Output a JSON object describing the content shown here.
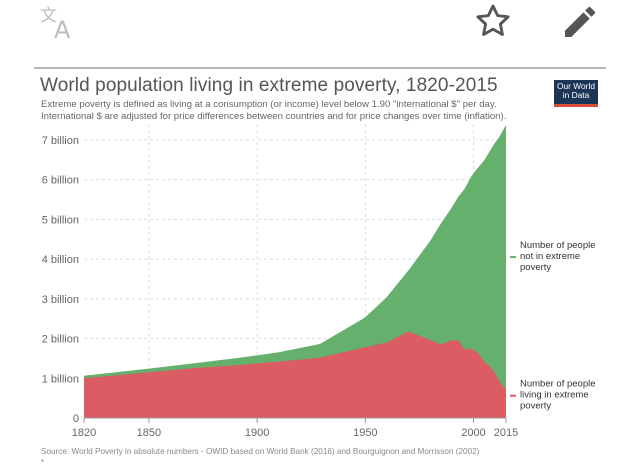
{
  "toolbar": {
    "translate_icon": "translate-icon",
    "star_icon": "star-icon",
    "edit_icon": "pencil-icon"
  },
  "header": {
    "title": "World population living in extreme poverty, 1820-2015",
    "subtitle_line1": "Extreme poverty is defined as living at a consumption (or income) level below 1.90 \"international $\" per day.",
    "subtitle_line2": "International $ are adjusted for price differences between countries and for price changes over time (inflation).",
    "logo_line1": "Our World",
    "logo_line2": "in Data"
  },
  "footer": {
    "source": "Source: World Poverty in absolute numbers - OWID based on World Bank (2016) and Bourguignon and Morrisson (2002)",
    "marker": "*"
  },
  "colors": {
    "poor": "#db5c62",
    "not_poor": "#66b06e",
    "grid": "#dddddd"
  },
  "chart_data": {
    "type": "area",
    "stacked": true,
    "title": "World population living in extreme poverty, 1820-2015",
    "xlim": [
      1820,
      2015
    ],
    "ylim": [
      0,
      7400000000
    ],
    "y_ticks": [
      {
        "value": 0,
        "label": "0"
      },
      {
        "value": 1000000000,
        "label": "1 billion"
      },
      {
        "value": 2000000000,
        "label": "2 billion"
      },
      {
        "value": 3000000000,
        "label": "3 billion"
      },
      {
        "value": 4000000000,
        "label": "4 billion"
      },
      {
        "value": 5000000000,
        "label": "5 billion"
      },
      {
        "value": 6000000000,
        "label": "6 billion"
      },
      {
        "value": 7000000000,
        "label": "7 billion"
      }
    ],
    "x_ticks": [
      {
        "value": 1820,
        "label": "1820"
      },
      {
        "value": 1850,
        "label": "1850"
      },
      {
        "value": 1900,
        "label": "1900"
      },
      {
        "value": 1950,
        "label": "1950"
      },
      {
        "value": 2000,
        "label": "2000"
      },
      {
        "value": 2015,
        "label": "2015"
      }
    ],
    "x": [
      1820,
      1850,
      1870,
      1890,
      1910,
      1929,
      1950,
      1960,
      1970,
      1980,
      1985,
      1990,
      1993,
      1996,
      1999,
      2002,
      2005,
      2008,
      2010,
      2012,
      2015
    ],
    "series": [
      {
        "name": "Number of people living in extreme poverty",
        "legend": "Number of people living in extreme poverty",
        "color_key": "poor",
        "values": [
          1000000000,
          1150000000,
          1250000000,
          1330000000,
          1420000000,
          1520000000,
          1780000000,
          1900000000,
          2180000000,
          1960000000,
          1850000000,
          1960000000,
          1950000000,
          1720000000,
          1750000000,
          1640000000,
          1420000000,
          1270000000,
          1120000000,
          930000000,
          720000000
        ]
      },
      {
        "name": "Number of people not in extreme poverty",
        "legend": "Number of people not in extreme poverty",
        "color_key": "not_poor",
        "values": [
          50000000,
          80000000,
          110000000,
          160000000,
          220000000,
          330000000,
          740000000,
          1130000000,
          1520000000,
          2480000000,
          3030000000,
          3320000000,
          3600000000,
          4040000000,
          4310000000,
          4640000000,
          5050000000,
          5470000000,
          5800000000,
          6130000000,
          6630000000
        ]
      }
    ]
  }
}
